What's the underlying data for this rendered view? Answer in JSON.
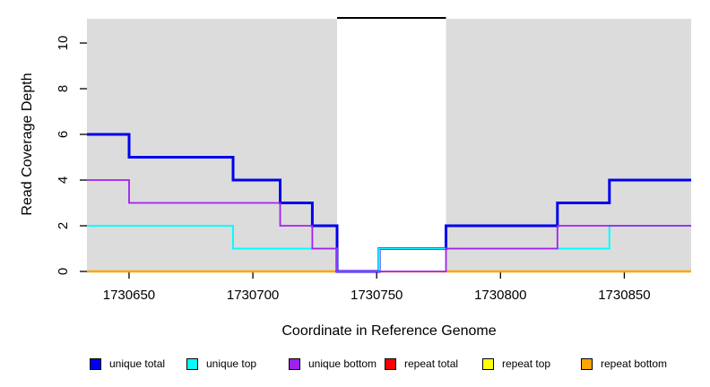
{
  "figure": {
    "background": "#ffffff",
    "plot_background": "#DCDCDC"
  },
  "chart_data": {
    "type": "line",
    "subtype": "step-post",
    "title": "",
    "xlabel": "Coordinate in Reference Genome",
    "ylabel": "Read Coverage Depth",
    "xlim": [
      1730633,
      1730877
    ],
    "ylim": [
      0,
      11.06
    ],
    "grid": false,
    "plot_bg": "#DCDCDC",
    "tick_color": "#000000",
    "x_ticks": [
      {
        "value": 1730650,
        "label": "1730650"
      },
      {
        "value": 1730700,
        "label": "1730700"
      },
      {
        "value": 1730750,
        "label": "1730750"
      },
      {
        "value": 1730800,
        "label": "1730800"
      },
      {
        "value": 1730850,
        "label": "1730850"
      }
    ],
    "y_ticks": [
      {
        "value": 0,
        "label": "0"
      },
      {
        "value": 2,
        "label": "2"
      },
      {
        "value": 4,
        "label": "4"
      },
      {
        "value": 6,
        "label": "6"
      },
      {
        "value": 8,
        "label": "8"
      },
      {
        "value": 10,
        "label": "10"
      }
    ],
    "highlight_region": {
      "x0": 1730734,
      "x1": 1730778,
      "fill": "#FFFFFF",
      "top_border_color": "#000000",
      "top_border_width": 2
    },
    "series": [
      {
        "name": "unique total",
        "color": "#0000EE",
        "line_width": 3,
        "steps": [
          [
            1730633,
            6
          ],
          [
            1730650,
            5
          ],
          [
            1730692,
            4
          ],
          [
            1730711,
            3
          ],
          [
            1730724,
            2
          ],
          [
            1730734,
            0
          ],
          [
            1730751,
            1
          ],
          [
            1730778,
            2
          ],
          [
            1730823,
            3
          ],
          [
            1730844,
            4
          ]
        ]
      },
      {
        "name": "unique top",
        "color": "#00FFFF",
        "line_width": 2,
        "steps": [
          [
            1730633,
            2
          ],
          [
            1730692,
            1
          ],
          [
            1730734,
            0
          ],
          [
            1730751,
            1
          ],
          [
            1730844,
            2
          ]
        ]
      },
      {
        "name": "unique bottom",
        "color": "#A020F0",
        "line_width": 1.8,
        "steps": [
          [
            1730633,
            4
          ],
          [
            1730650,
            3
          ],
          [
            1730711,
            2
          ],
          [
            1730724,
            1
          ],
          [
            1730734,
            0
          ],
          [
            1730778,
            1
          ],
          [
            1730823,
            2
          ]
        ]
      },
      {
        "name": "repeat total",
        "color": "#FF0000",
        "line_width": 2,
        "steps": [
          [
            1730633,
            0
          ]
        ]
      },
      {
        "name": "repeat top",
        "color": "#FFFF00",
        "line_width": 2,
        "steps": [
          [
            1730633,
            0
          ]
        ]
      },
      {
        "name": "repeat bottom",
        "color": "#FFA500",
        "line_width": 2.5,
        "steps": [
          [
            1730633,
            0
          ]
        ]
      }
    ],
    "draw_order": [
      "repeat total",
      "repeat top",
      "repeat bottom",
      "__highlight__",
      "unique total",
      "unique top",
      "unique bottom"
    ],
    "legend": {
      "position": "bottom",
      "items": [
        {
          "label": "unique total",
          "color": "#0000EE"
        },
        {
          "label": "unique top",
          "color": "#00FFFF"
        },
        {
          "label": "unique bottom",
          "color": "#A020F0"
        },
        {
          "label": "repeat total",
          "color": "#FF0000"
        },
        {
          "label": "repeat top",
          "color": "#FFFF00"
        },
        {
          "label": "repeat bottom",
          "color": "#FFA500"
        }
      ]
    }
  }
}
